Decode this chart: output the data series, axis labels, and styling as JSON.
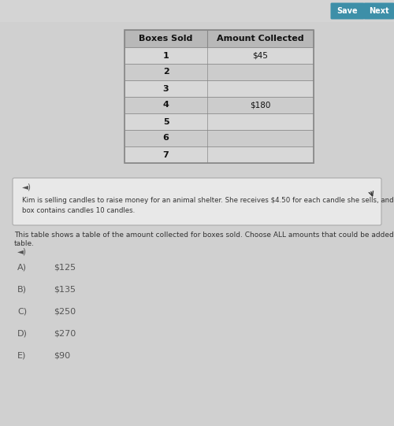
{
  "page_bg": "#d0d0d0",
  "top_bar_bg": "#c8c8c8",
  "table_header": [
    "Boxes Sold",
    "Amount Collected"
  ],
  "table_rows": [
    [
      "1",
      "$45"
    ],
    [
      "2",
      ""
    ],
    [
      "3",
      ""
    ],
    [
      "4",
      "$180"
    ],
    [
      "5",
      ""
    ],
    [
      "6",
      ""
    ],
    [
      "7",
      ""
    ]
  ],
  "context_text_line1": "Kim is selling candles to raise money for an animal shelter. She receives $4.50 for each candle she sells, and each",
  "context_text_line2": "box contains candles 10 candles.",
  "question_line1": "This table shows a table of the amount collected for boxes sold. Choose ALL amounts that could be added to this",
  "question_line2": "table.",
  "choices": [
    [
      "A)",
      "$125"
    ],
    [
      "B)",
      "$135"
    ],
    [
      "C)",
      "$250"
    ],
    [
      "D)",
      "$270"
    ],
    [
      "E)",
      "$90"
    ]
  ],
  "save_btn": "Save",
  "next_btn": "Next",
  "btn_save_color": "#3d8fa8",
  "btn_next_color": "#3d8fa8",
  "table_header_bg": "#b8b8b8",
  "table_row_bg1": "#d8d8d8",
  "table_row_bg2": "#cccccc",
  "table_border": "#888888",
  "choice_label_color": "#555555",
  "choice_value_color": "#555555",
  "text_color": "#333333",
  "context_box_bg": "#e8e8e8",
  "context_box_border": "#aaaaaa"
}
